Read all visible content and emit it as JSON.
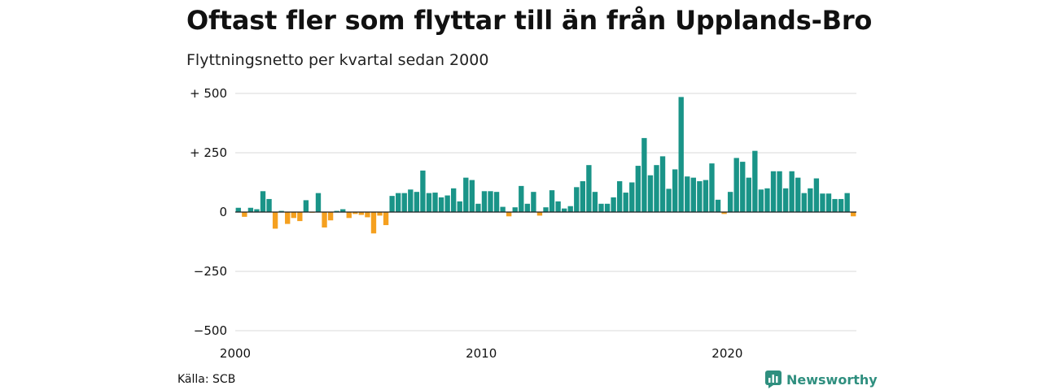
{
  "colors": {
    "positive": "#1a9488",
    "negative": "#f5a01f",
    "grid": "#d9d9d9",
    "zero_line": "#222222",
    "brand": "#2f8f7f"
  },
  "footer": {
    "source": "Källa: SCB",
    "brand": "Newsworthy",
    "brand_icon": "newsworthy-logo-icon"
  },
  "chart_data": {
    "type": "bar",
    "title": "Oftast fler som flyttar till än från Upplands-Bro",
    "subtitle": "Flyttningsnetto per kvartal sedan 2000",
    "xlabel": "",
    "ylabel": "",
    "ylim": [
      -520,
      520
    ],
    "grid": true,
    "legend": "none",
    "y_ticks": [
      {
        "value": 500,
        "label": "+ 500"
      },
      {
        "value": 250,
        "label": "+ 250"
      },
      {
        "value": 0,
        "label": "0"
      },
      {
        "value": -250,
        "label": "−250"
      },
      {
        "value": -500,
        "label": "−500"
      }
    ],
    "x_ticks": [
      {
        "year": 2000,
        "label": "2000"
      },
      {
        "year": 2010,
        "label": "2010"
      },
      {
        "year": 2020,
        "label": "2020"
      }
    ],
    "categories": [
      "2000 K1",
      "2000 K2",
      "2000 K3",
      "2000 K4",
      "2001 K1",
      "2001 K2",
      "2001 K3",
      "2001 K4",
      "2002 K1",
      "2002 K2",
      "2002 K3",
      "2002 K4",
      "2003 K1",
      "2003 K2",
      "2003 K3",
      "2003 K4",
      "2004 K1",
      "2004 K2",
      "2004 K3",
      "2004 K4",
      "2005 K1",
      "2005 K2",
      "2005 K3",
      "2005 K4",
      "2006 K1",
      "2006 K2",
      "2006 K3",
      "2006 K4",
      "2007 K1",
      "2007 K2",
      "2007 K3",
      "2007 K4",
      "2008 K1",
      "2008 K2",
      "2008 K3",
      "2008 K4",
      "2009 K1",
      "2009 K2",
      "2009 K3",
      "2009 K4",
      "2010 K1",
      "2010 K2",
      "2010 K3",
      "2010 K4",
      "2011 K1",
      "2011 K2",
      "2011 K3",
      "2011 K4",
      "2012 K1",
      "2012 K2",
      "2012 K3",
      "2012 K4",
      "2013 K1",
      "2013 K2",
      "2013 K3",
      "2013 K4",
      "2014 K1",
      "2014 K2",
      "2014 K3",
      "2014 K4",
      "2015 K1",
      "2015 K2",
      "2015 K3",
      "2015 K4",
      "2016 K1",
      "2016 K2",
      "2016 K3",
      "2016 K4",
      "2017 K1",
      "2017 K2",
      "2017 K3",
      "2017 K4",
      "2018 K1",
      "2018 K2",
      "2018 K3",
      "2018 K4",
      "2019 K1",
      "2019 K2",
      "2019 K3",
      "2019 K4",
      "2020 K1",
      "2020 K2",
      "2020 K3",
      "2020 K4",
      "2021 K1",
      "2021 K2",
      "2021 K3",
      "2021 K4",
      "2022 K1",
      "2022 K2",
      "2022 K3",
      "2022 K4",
      "2023 K1",
      "2023 K2",
      "2023 K3",
      "2023 K4",
      "2024 K1",
      "2024 K2",
      "2024 K3",
      "2024 K4",
      "2025 K1"
    ],
    "values": [
      18,
      -20,
      18,
      12,
      88,
      55,
      -70,
      5,
      -50,
      -25,
      -38,
      50,
      -3,
      80,
      -65,
      -35,
      5,
      12,
      -25,
      -8,
      -12,
      -22,
      -90,
      -15,
      -55,
      68,
      80,
      80,
      95,
      85,
      175,
      80,
      82,
      62,
      70,
      100,
      45,
      145,
      135,
      35,
      88,
      88,
      85,
      22,
      -18,
      20,
      110,
      35,
      85,
      -15,
      20,
      92,
      45,
      15,
      25,
      105,
      130,
      198,
      85,
      35,
      35,
      62,
      130,
      82,
      125,
      195,
      312,
      155,
      198,
      235,
      98,
      180,
      485,
      150,
      145,
      130,
      135,
      205,
      52,
      -8,
      85,
      228,
      212,
      145,
      258,
      95,
      100,
      172,
      172,
      100,
      172,
      145,
      80,
      100,
      142,
      78,
      78,
      55,
      55,
      80,
      -18
    ]
  }
}
